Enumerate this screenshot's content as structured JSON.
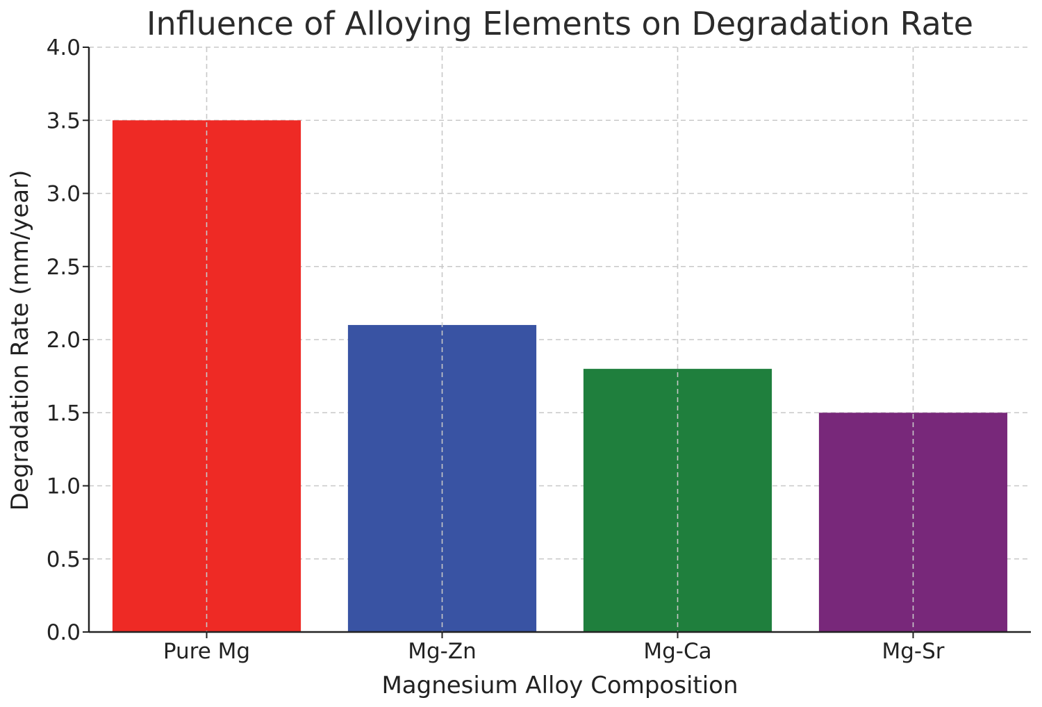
{
  "chart_data": {
    "type": "bar",
    "title": "Influence of Alloying Elements on Degradation Rate",
    "xlabel": "Magnesium Alloy Composition",
    "ylabel": "Degradation Rate (mm/year)",
    "categories": [
      "Pure Mg",
      "Mg-Zn",
      "Mg-Ca",
      "Mg-Sr"
    ],
    "values": [
      3.5,
      2.1,
      1.8,
      1.5
    ],
    "colors": [
      "#ee2a25",
      "#3953a3",
      "#1f7f3d",
      "#78287a"
    ],
    "ylim": [
      0,
      4.0
    ],
    "yticks": [
      "0.0",
      "0.5",
      "1.0",
      "1.5",
      "2.0",
      "2.5",
      "3.0",
      "3.5",
      "4.0"
    ],
    "grid": true,
    "legend": "none"
  }
}
